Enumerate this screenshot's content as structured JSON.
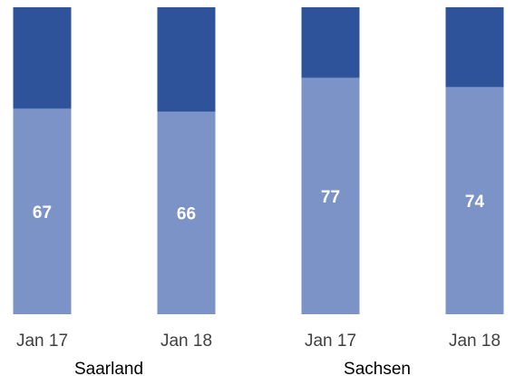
{
  "chart_data": {
    "type": "bar",
    "stacked": true,
    "normalized_to": 100,
    "groups": [
      {
        "label": "Saarland",
        "categories": [
          "Jan 17",
          "Jan 18"
        ]
      },
      {
        "label": "Sachsen",
        "categories": [
          "Jan 17",
          "Jan 18"
        ]
      }
    ],
    "categories": [
      "Jan 17",
      "Jan 18",
      "Jan 17",
      "Jan 18"
    ],
    "series": [
      {
        "values": [
          67,
          66,
          77,
          74
        ],
        "color": "#7b93c6",
        "data_labels": true
      },
      {
        "values": [
          33,
          34,
          23,
          26
        ],
        "color": "#2f539a",
        "data_labels": false
      }
    ],
    "ylim": [
      0,
      100
    ],
    "grid": false,
    "legend": "none"
  }
}
